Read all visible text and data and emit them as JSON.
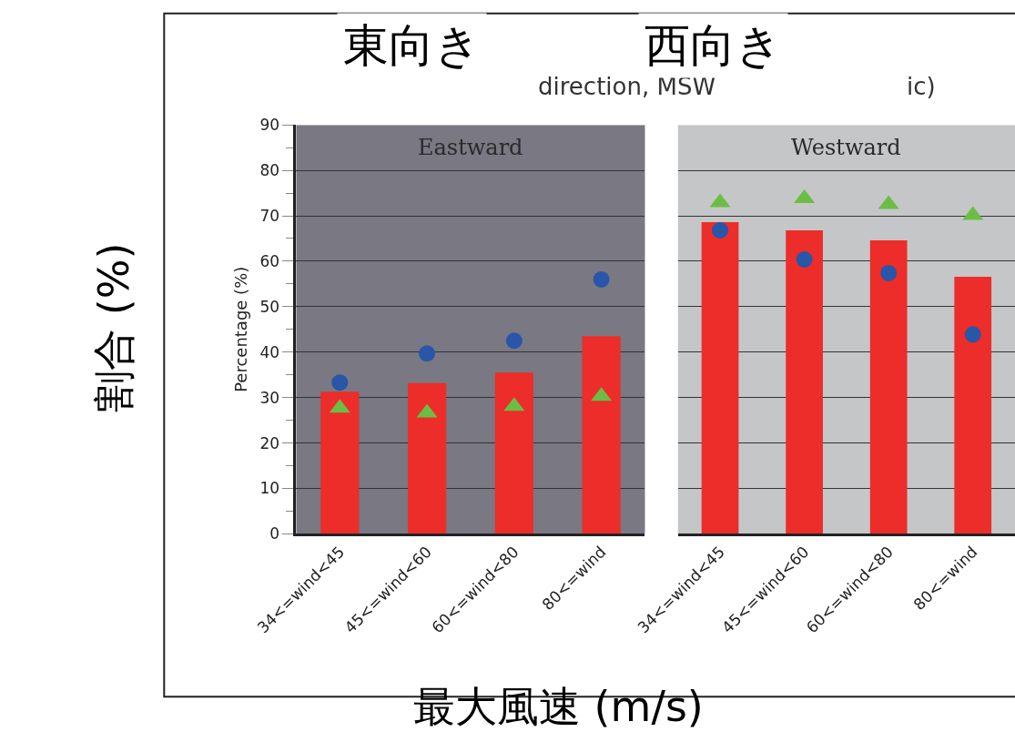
{
  "chart_data": [
    {
      "type": "bar",
      "title": "東向き",
      "xlabel": "最大風速 (m/s)",
      "ylabel": "Percentage (%)",
      "annotations": [
        "割合 (%)",
        "direction, MSW",
        "ic)"
      ],
      "categories": [
        "34<=wind<45",
        "45<=wind<60",
        "60<=wind<80",
        "80<=wind"
      ],
      "series": [
        {
          "color": "#ec2d29",
          "values": [
            31.3,
            33.2,
            35.5,
            43.5
          ]
        },
        {
          "type": "scatter",
          "marker": "circle",
          "color": "#2856a8",
          "values": [
            33.3,
            39.7,
            42.5,
            56.0
          ]
        },
        {
          "type": "scatter",
          "marker": "triangle",
          "color": "#6cbd45",
          "values": [
            27.7,
            26.6,
            28.1,
            30.3
          ]
        }
      ],
      "bands": [
        {
          "axis": "y",
          "from": 0,
          "to": 90,
          "label": "Eastward",
          "color": "#797883"
        }
      ],
      "ylim": [
        0,
        90
      ],
      "yticks": [
        0,
        {
          "value": 5,
          "label": null
        },
        10,
        {
          "value": 15,
          "label": null
        },
        20,
        {
          "value": 25,
          "label": null
        },
        30,
        {
          "value": 35,
          "label": null
        },
        40,
        {
          "value": 45,
          "label": null
        },
        50,
        {
          "value": 55,
          "label": null
        },
        60,
        {
          "value": 65,
          "label": null
        },
        70,
        {
          "value": 75,
          "label": null
        },
        80,
        {
          "value": 85,
          "label": null
        },
        90
      ],
      "grid": "y",
      "legend": false
    },
    {
      "type": "bar",
      "title": "西向き",
      "categories": [
        "34<=wind<45",
        "45<=wind<60",
        "60<=wind<80",
        "80<=wind"
      ],
      "series": [
        {
          "color": "#ec2d29",
          "values": [
            68.6,
            66.8,
            64.6,
            56.6
          ]
        },
        {
          "type": "scatter",
          "marker": "circle",
          "color": "#2856a8",
          "values": [
            66.8,
            60.4,
            57.4,
            43.9
          ]
        },
        {
          "type": "scatter",
          "marker": "triangle",
          "color": "#6cbd45",
          "values": [
            72.9,
            73.8,
            72.5,
            70.1
          ]
        }
      ],
      "bands": [
        {
          "axis": "y",
          "from": 0,
          "to": 90,
          "label": "Westward",
          "color": "#c5c6c8"
        }
      ],
      "ylim": [
        0,
        90
      ],
      "yticks": [
        0,
        10,
        20,
        30,
        40,
        50,
        60,
        70,
        80,
        90
      ],
      "grid": "y",
      "legend": false,
      "tick_labels": "x"
    }
  ]
}
